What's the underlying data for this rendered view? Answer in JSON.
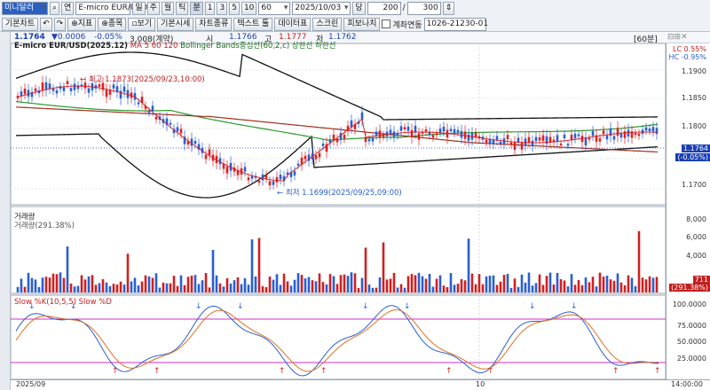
{
  "toolbar": {
    "code": "미니달러",
    "code_desc": "E-micro EUR/USD",
    "btn_continuous": "연",
    "period_btns": [
      "일",
      "주",
      "월",
      "틱",
      "분"
    ],
    "interval_btns": [
      "1",
      "3",
      "5",
      "10"
    ],
    "interval_select": "60",
    "date": "2025/10/03",
    "day_label": "당",
    "count_value": "200",
    "count_total": "300",
    "row2": [
      "기본차트",
      "지표",
      "종목",
      "보기",
      "기본시세",
      "차트종류",
      "텍스트 툴",
      "데이터표",
      "스크린",
      "피보나치"
    ],
    "continuous_label": "계좌연동",
    "account": "1026-21230-01"
  },
  "info": {
    "price": "1.1764",
    "change": "▼0.0006",
    "pct": "-0.05%",
    "volume": "3,008(계약)",
    "open_label": "시",
    "open": "1.1766",
    "high_label": "고",
    "high": "1.1777",
    "low_label": "저",
    "low": "1.1762",
    "period": "[60분]"
  },
  "price_panel": {
    "title_a": "E-micro EUR/USD(2025.12)",
    "title_b": "MA 5 60 120",
    "title_c": "Bollinger Bands중심선(60,2,c)  상한선  하한선",
    "high_annot": "최고 1.1873(2025/09/23,10:00)",
    "low_annot": "최저 1.1699(2025/09/25,09:00)",
    "axis": [
      "1.1900",
      "1.1850",
      "1.1800",
      "1.1750",
      "1.1700"
    ],
    "lc": "LC  0.55%",
    "hc": "HC  -0.95%",
    "last_price": "1.1764",
    "last_pct": "(-0.05%)",
    "colors": {
      "ma5": "#d02020",
      "ma60": "#a03020",
      "ma120": "#2a9a2a",
      "band": "#111111",
      "up": "#e02020",
      "down": "#2a5fd0"
    }
  },
  "volume_panel": {
    "title": "거래량",
    "sub": "거래량(291.38%)",
    "axis": [
      "8,000",
      "6,000",
      "4,000",
      "2,000"
    ],
    "last": "711",
    "last_pct": "(291.38%)"
  },
  "stoch_panel": {
    "title": "Slow %K(10,5,5)  Slow %D",
    "axis": [
      "100.0000",
      "75.0000",
      "50.0000",
      "25.0000"
    ]
  },
  "xaxis": {
    "start": "2025/09",
    "mid": "10",
    "end": "14:00:00"
  }
}
